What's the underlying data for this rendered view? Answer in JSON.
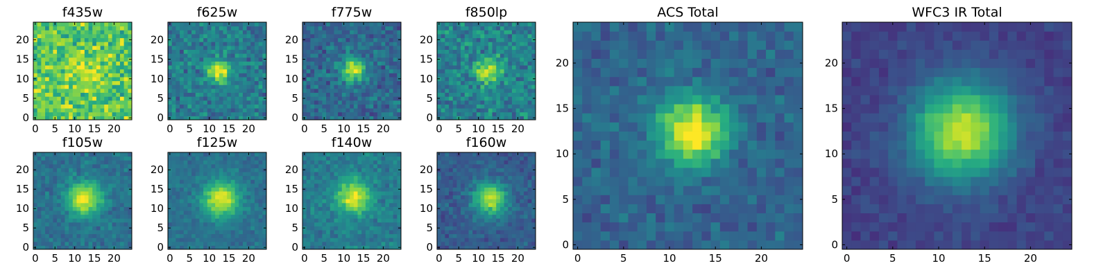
{
  "chart_data": [
    {
      "type": "heatmap",
      "title": "f435w",
      "image_size": 25,
      "xticks": [
        0,
        5,
        10,
        15,
        20
      ],
      "yticks": [
        0,
        5,
        10,
        15,
        20
      ],
      "xlim": [
        -0.5,
        24.5
      ],
      "ylim": [
        -0.5,
        24.5
      ],
      "colormap": "viridis",
      "source_center": [
        12,
        12
      ],
      "source_profile": {
        "peak": 0.12,
        "sigma": 3.5,
        "background": 0.75,
        "noise": 0.28
      },
      "grid": false
    },
    {
      "type": "heatmap",
      "title": "f625w",
      "image_size": 25,
      "xticks": [
        0,
        5,
        10,
        15,
        20
      ],
      "yticks": [
        0,
        5,
        10,
        15,
        20
      ],
      "xlim": [
        -0.5,
        24.5
      ],
      "ylim": [
        -0.5,
        24.5
      ],
      "colormap": "viridis",
      "source_center": [
        12.5,
        12
      ],
      "source_profile": {
        "peak": 0.6,
        "sigma": 2.0,
        "background": 0.42,
        "noise": 0.2
      },
      "grid": false
    },
    {
      "type": "heatmap",
      "title": "f775w",
      "image_size": 25,
      "xticks": [
        0,
        5,
        10,
        15,
        20
      ],
      "yticks": [
        0,
        5,
        10,
        15,
        20
      ],
      "xlim": [
        -0.5,
        24.5
      ],
      "ylim": [
        -0.5,
        24.5
      ],
      "colormap": "viridis",
      "source_center": [
        12.5,
        12.5
      ],
      "source_profile": {
        "peak": 0.65,
        "sigma": 2.0,
        "background": 0.35,
        "noise": 0.18
      },
      "grid": false
    },
    {
      "type": "heatmap",
      "title": "f850lp",
      "image_size": 25,
      "xticks": [
        0,
        5,
        10,
        15,
        20
      ],
      "yticks": [
        0,
        5,
        10,
        15,
        20
      ],
      "xlim": [
        -0.5,
        24.5
      ],
      "ylim": [
        -0.5,
        24.5
      ],
      "colormap": "viridis",
      "source_center": [
        12.5,
        12
      ],
      "source_profile": {
        "peak": 0.5,
        "sigma": 2.2,
        "background": 0.45,
        "noise": 0.22
      },
      "grid": false
    },
    {
      "type": "heatmap",
      "title": "f105w",
      "image_size": 25,
      "xticks": [
        0,
        5,
        10,
        15,
        20
      ],
      "yticks": [
        0,
        5,
        10,
        15,
        20
      ],
      "xlim": [
        -0.5,
        24.5
      ],
      "ylim": [
        -0.5,
        24.5
      ],
      "colormap": "viridis",
      "source_center": [
        12.5,
        12.5
      ],
      "source_profile": {
        "peak": 0.6,
        "sigma": 3.0,
        "background": 0.38,
        "noise": 0.12
      },
      "grid": false
    },
    {
      "type": "heatmap",
      "title": "f125w",
      "image_size": 25,
      "xticks": [
        0,
        5,
        10,
        15,
        20
      ],
      "yticks": [
        0,
        5,
        10,
        15,
        20
      ],
      "xlim": [
        -0.5,
        24.5
      ],
      "ylim": [
        -0.5,
        24.5
      ],
      "colormap": "viridis",
      "source_center": [
        13,
        12.5
      ],
      "source_profile": {
        "peak": 0.6,
        "sigma": 3.2,
        "background": 0.38,
        "noise": 0.1
      },
      "grid": false
    },
    {
      "type": "heatmap",
      "title": "f140w",
      "image_size": 25,
      "xticks": [
        0,
        5,
        10,
        15,
        20
      ],
      "yticks": [
        0,
        5,
        10,
        15,
        20
      ],
      "xlim": [
        -0.5,
        24.5
      ],
      "ylim": [
        -0.5,
        24.5
      ],
      "colormap": "viridis",
      "source_center": [
        12.5,
        13
      ],
      "source_profile": {
        "peak": 0.55,
        "sigma": 3.0,
        "background": 0.42,
        "noise": 0.13
      },
      "grid": false
    },
    {
      "type": "heatmap",
      "title": "f160w",
      "image_size": 25,
      "xticks": [
        0,
        5,
        10,
        15,
        20
      ],
      "yticks": [
        0,
        5,
        10,
        15,
        20
      ],
      "xlim": [
        -0.5,
        24.5
      ],
      "ylim": [
        -0.5,
        24.5
      ],
      "colormap": "viridis",
      "source_center": [
        13,
        12.5
      ],
      "source_profile": {
        "peak": 0.6,
        "sigma": 3.0,
        "background": 0.3,
        "noise": 0.12
      },
      "grid": false
    },
    {
      "type": "heatmap",
      "title": "ACS Total",
      "image_size": 25,
      "xticks": [
        0,
        5,
        10,
        15,
        20
      ],
      "yticks": [
        0,
        5,
        10,
        15,
        20
      ],
      "xlim": [
        -0.5,
        24.5
      ],
      "ylim": [
        -0.5,
        24.5
      ],
      "colormap": "viridis",
      "source_center": [
        12.5,
        12.5
      ],
      "source_profile": {
        "peak": 0.7,
        "sigma": 2.6,
        "background": 0.33,
        "noise": 0.13
      },
      "grid": false
    },
    {
      "type": "heatmap",
      "title": "WFC3 IR Total",
      "image_size": 25,
      "xticks": [
        0,
        5,
        10,
        15,
        20
      ],
      "yticks": [
        0,
        5,
        10,
        15,
        20
      ],
      "xlim": [
        -0.5,
        24.5
      ],
      "ylim": [
        -0.5,
        24.5
      ],
      "colormap": "viridis",
      "source_center": [
        12.5,
        12.5
      ],
      "source_profile": {
        "peak": 0.72,
        "sigma": 3.8,
        "background": 0.2,
        "noise": 0.07
      },
      "grid": false
    }
  ]
}
